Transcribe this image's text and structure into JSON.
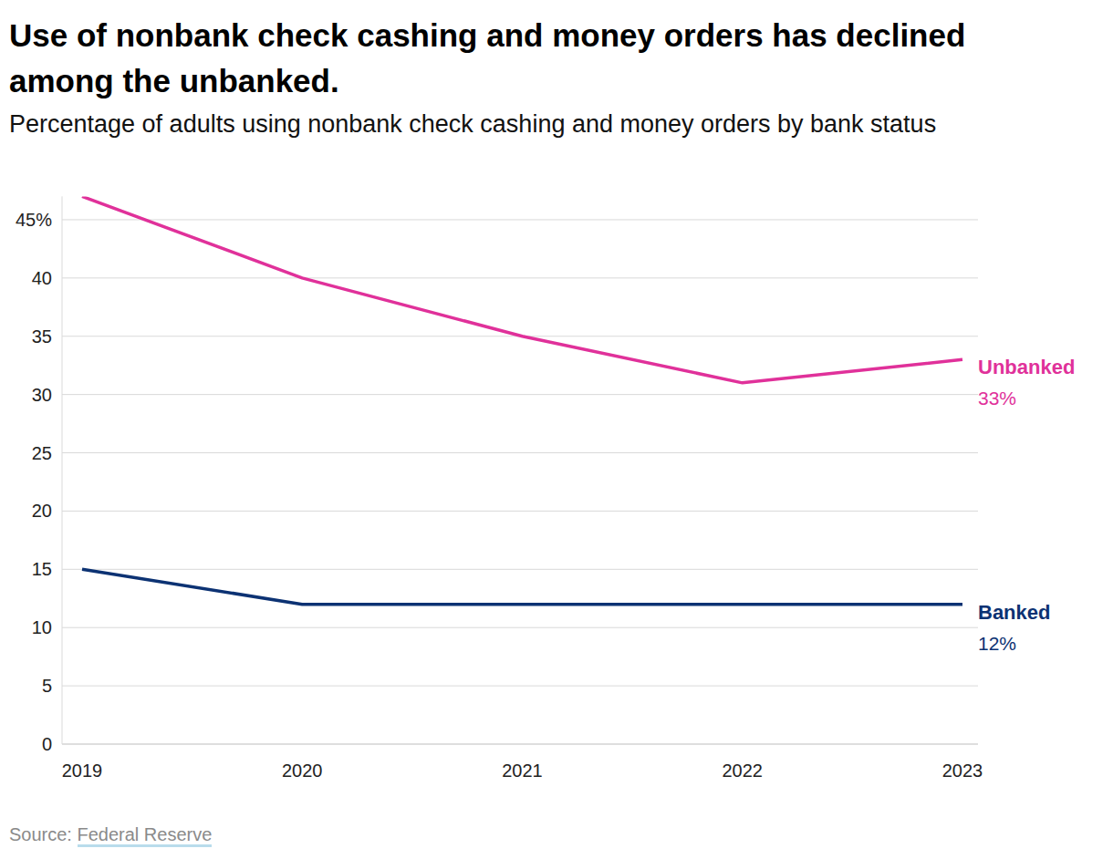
{
  "chart_data": {
    "type": "line",
    "title": "Use of nonbank check cashing and money orders has declined among the unbanked.",
    "subtitle": "Percentage of adults using nonbank check cashing and money orders by bank status",
    "source_prefix": "Source:",
    "source": "Federal Reserve",
    "categories": [
      "2019",
      "2020",
      "2021",
      "2022",
      "2023"
    ],
    "series": [
      {
        "name": "Unbanked",
        "color": "#e0319a",
        "values": [
          47,
          40,
          35,
          31,
          33
        ],
        "value_labels": [
          null,
          null,
          null,
          null,
          "33%"
        ]
      },
      {
        "name": "Banked",
        "color": "#0c3273",
        "values": [
          15,
          12,
          12,
          12,
          12
        ],
        "value_labels": [
          null,
          null,
          null,
          null,
          "12%"
        ]
      }
    ],
    "ylim": [
      0,
      47
    ],
    "yticks": [
      0,
      5,
      10,
      15,
      20,
      25,
      30,
      35,
      40,
      {
        "value": 45,
        "label": "45%"
      }
    ],
    "grid": true,
    "data_labels": true
  }
}
